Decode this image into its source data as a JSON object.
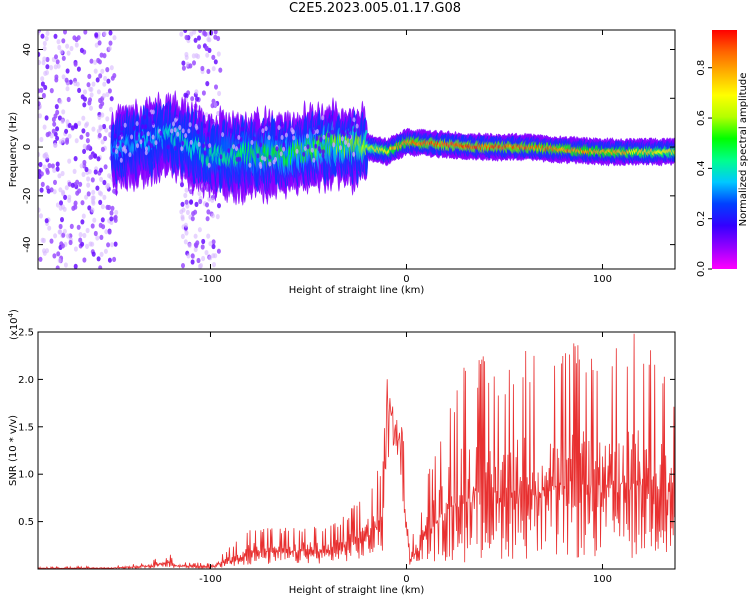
{
  "title": "C2E5.2023.005.01.17.G08",
  "colors": {
    "snr_line": "#e83030",
    "colormap": [
      "#ff00ff",
      "#9400ff",
      "#3300ff",
      "#0040ff",
      "#00c8ff",
      "#00ff8c",
      "#00ff00",
      "#b4ff00",
      "#ffff00",
      "#ffb400",
      "#ff6400",
      "#ff0000"
    ]
  },
  "chart_data": [
    {
      "type": "heatmap",
      "id": "spectrogram",
      "xlabel": "Height of straight line (km)",
      "ylabel": "Frequency (Hz)",
      "xlim": [
        -188,
        137
      ],
      "ylim": [
        -50,
        48
      ],
      "xticks": [
        -100,
        0,
        100
      ],
      "xtick_labels": [
        "-100",
        "0",
        "100"
      ],
      "yticks": [
        -40,
        -20,
        0,
        20,
        40
      ],
      "ytick_labels": [
        "-40",
        "-20",
        "0",
        "20",
        "40"
      ],
      "ridge": {
        "description": "dominant spectral ridge near 0 Hz",
        "x": [
          -150,
          -120,
          -100,
          -80,
          -60,
          -40,
          -20,
          -10,
          0,
          20,
          40,
          60,
          80,
          100,
          120,
          137
        ],
        "frequency": [
          -1,
          5,
          -4,
          -3,
          -3,
          1,
          0,
          -2,
          2,
          1,
          0,
          0,
          -1,
          -2,
          -2,
          -2
        ],
        "amplitude": [
          0.35,
          0.4,
          0.45,
          0.5,
          0.55,
          0.6,
          0.65,
          0.8,
          0.9,
          0.95,
          0.95,
          0.92,
          0.9,
          0.85,
          0.8,
          0.75
        ]
      },
      "noise_regions": [
        {
          "x_range": [
            -188,
            -148
          ],
          "amplitude": 0.25
        },
        {
          "x_range": [
            -115,
            -95
          ],
          "amplitude": 0.2
        }
      ],
      "colorbar": {
        "label": "Normalized spectral amplitude",
        "range": [
          0.0,
          0.95
        ],
        "ticks": [
          0.0,
          0.2,
          0.4,
          0.6,
          0.8
        ],
        "tick_labels": [
          "0.0",
          "0.2",
          "0.4",
          "0.6",
          "0.8"
        ]
      }
    },
    {
      "type": "line",
      "id": "snr",
      "xlabel": "Height of straight line (km)",
      "ylabel": "SNR (10 * v/v)",
      "scale_label": "(x10",
      "scale_exponent": "4",
      "scale_suffix": ")",
      "xlim": [
        -188,
        137
      ],
      "ylim": [
        0,
        2.5
      ],
      "xticks": [
        -100,
        0,
        100
      ],
      "xtick_labels": [
        "-100",
        "0",
        "100"
      ],
      "yticks": [
        0.5,
        1.0,
        1.5,
        2.0,
        2.5
      ],
      "ytick_labels": [
        "0.5",
        "1.0",
        "1.5",
        "2.0",
        "2.5"
      ],
      "envelope": {
        "x": [
          -188,
          -150,
          -130,
          -122,
          -118,
          -100,
          -92,
          -80,
          -60,
          -40,
          -30,
          -20,
          -12,
          -10,
          -6,
          -2,
          2,
          6,
          10,
          20,
          30,
          40,
          50,
          60,
          70,
          80,
          90,
          100,
          110,
          120,
          137
        ],
        "max": [
          0.02,
          0.03,
          0.08,
          0.2,
          0.08,
          0.06,
          0.2,
          0.45,
          0.45,
          0.45,
          0.6,
          0.85,
          1.2,
          2.05,
          1.6,
          1.55,
          0.35,
          0.5,
          0.95,
          1.75,
          2.3,
          2.25,
          2.15,
          2.4,
          2.25,
          2.45,
          2.5,
          2.35,
          2.5,
          2.5,
          2.0
        ],
        "min": [
          0.0,
          0.0,
          0.01,
          0.02,
          0.01,
          0.0,
          0.02,
          0.04,
          0.05,
          0.06,
          0.08,
          0.1,
          0.15,
          0.7,
          1.2,
          0.6,
          0.0,
          0.05,
          0.1,
          0.05,
          0.05,
          0.1,
          0.1,
          0.1,
          0.1,
          0.1,
          0.1,
          0.1,
          0.1,
          0.1,
          0.2
        ]
      }
    }
  ]
}
